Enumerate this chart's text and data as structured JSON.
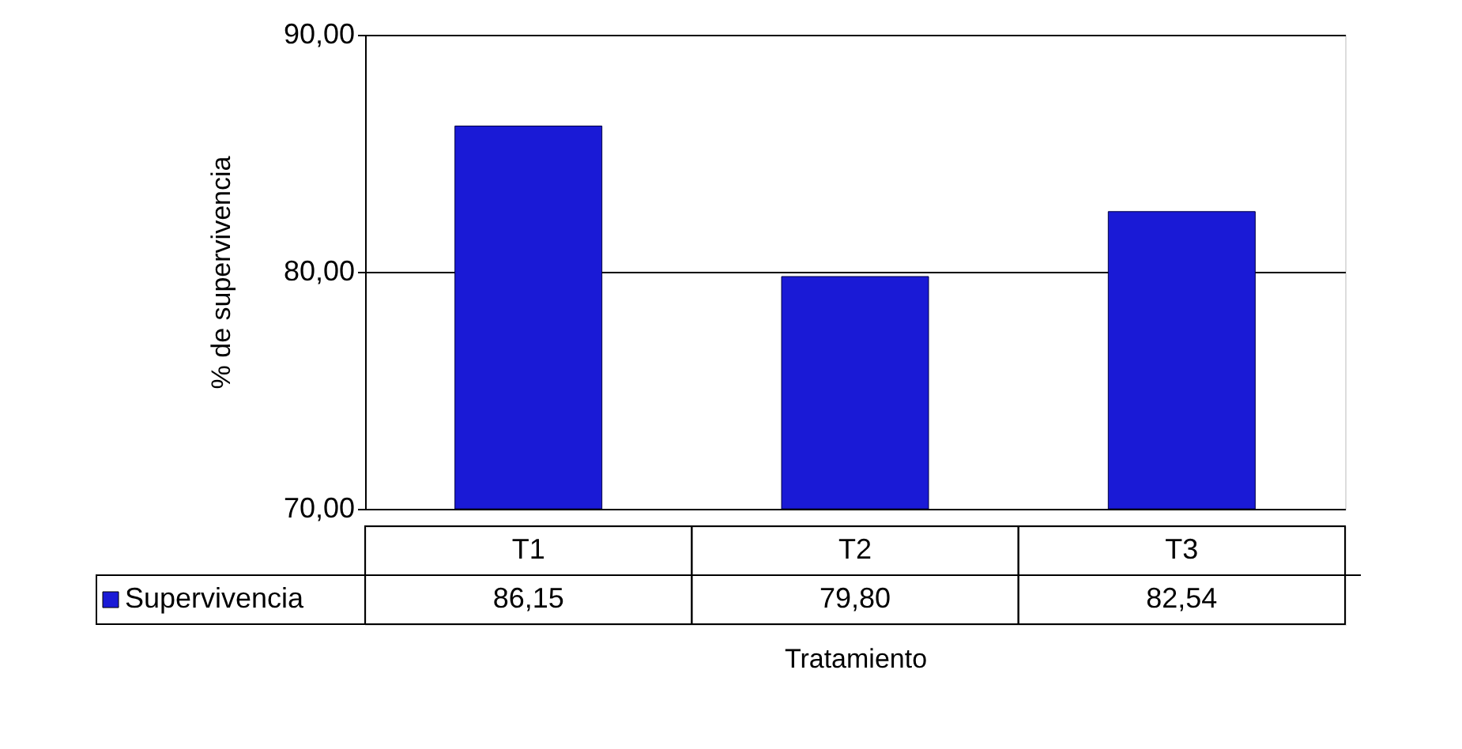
{
  "chart_data": {
    "type": "bar",
    "xlabel": "Tratamiento",
    "ylabel": "% de supervivencia",
    "categories": [
      "T1",
      "T2",
      "T3"
    ],
    "series": [
      {
        "name": "Supervivencia",
        "color": "#1a1ad6",
        "values": [
          86.15,
          79.8,
          82.54
        ],
        "value_labels": [
          "86,15",
          "79,80",
          "82,54"
        ]
      }
    ],
    "ylim": [
      70,
      90
    ],
    "yticks": [
      {
        "value": 70,
        "label": "70,00"
      },
      {
        "value": 80,
        "label": "80,00"
      },
      {
        "value": 90,
        "label": "90,00"
      }
    ],
    "grid": "y",
    "legend": "bottom left"
  }
}
